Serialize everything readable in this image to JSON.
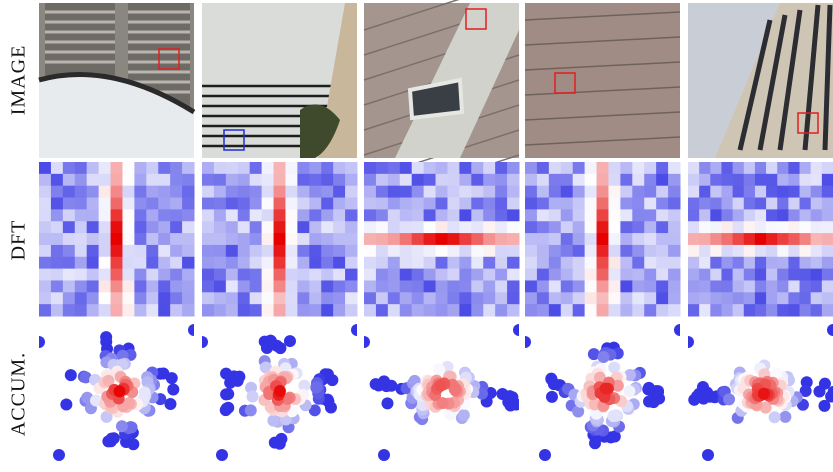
{
  "row_labels": [
    "IMAGE",
    "DFT",
    "ACCUM."
  ]
}
